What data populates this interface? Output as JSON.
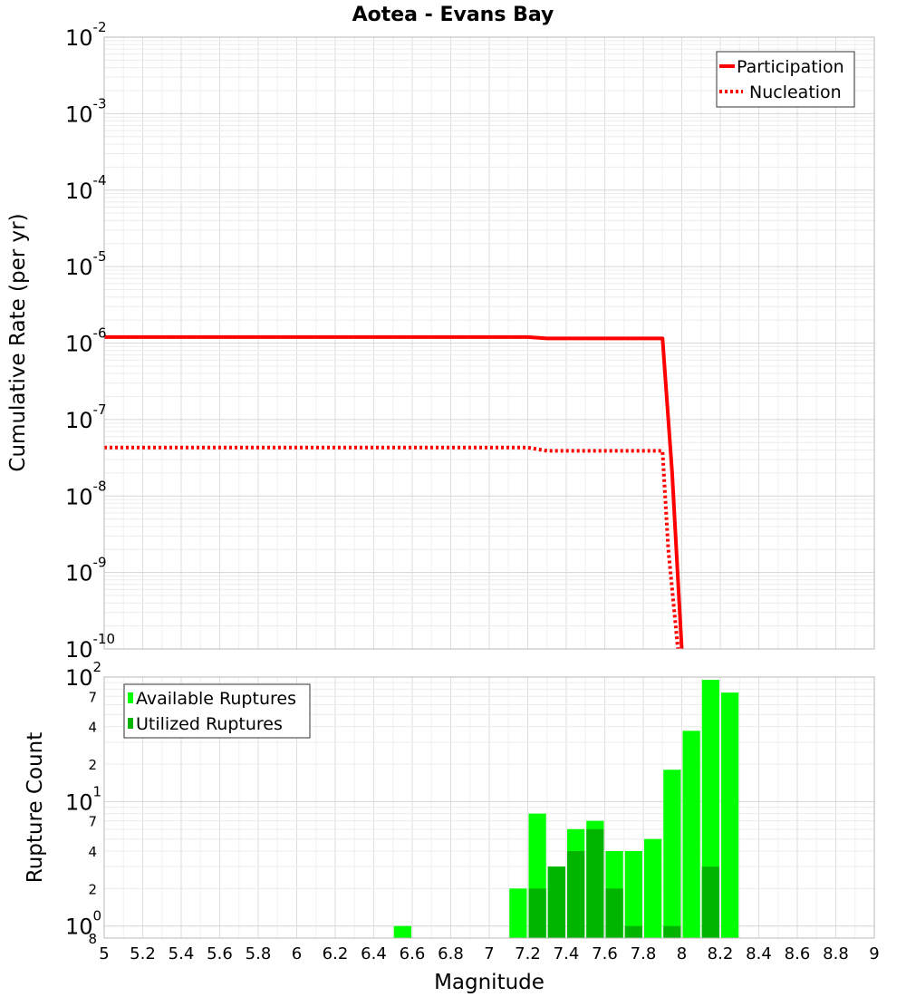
{
  "colors": {
    "participation": "#ff0000",
    "nucleation": "#ff0000",
    "available": "#00ff00",
    "utilized": "#00b400",
    "grid": "#e4e4e4"
  },
  "chart_data": [
    {
      "type": "line",
      "title": "Aotea - Evans Bay",
      "xlabel": "Magnitude",
      "ylabel": "Cumulative Rate (per yr)",
      "yscale": "log",
      "xlim": [
        5,
        9
      ],
      "ylim_exponents": [
        -10,
        -2
      ],
      "ytick_exponents": [
        -10,
        -9,
        -8,
        -7,
        -6,
        -5,
        -4,
        -3,
        -2
      ],
      "legend_position": "top-right",
      "series": [
        {
          "name": "Participation",
          "style": "solid",
          "x": [
            5.0,
            7.2,
            7.3,
            7.9,
            7.95,
            8.0
          ],
          "y": [
            1.2e-06,
            1.2e-06,
            1.15e-06,
            1.15e-06,
            2e-08,
            1e-10
          ]
        },
        {
          "name": "Nucleation",
          "style": "dotted",
          "x": [
            5.0,
            7.2,
            7.3,
            7.9,
            7.93,
            7.98
          ],
          "y": [
            4.3e-08,
            4.3e-08,
            3.9e-08,
            3.9e-08,
            2e-09,
            1e-10
          ]
        }
      ]
    },
    {
      "type": "bar",
      "xlabel": "Magnitude",
      "ylabel": "Rupture Count",
      "yscale": "log",
      "xlim": [
        5,
        9
      ],
      "ylim": [
        0.8,
        100
      ],
      "major_ticks": [
        {
          "base": "10",
          "exp": "0",
          "value": 1
        },
        {
          "base": "10",
          "exp": "1",
          "value": 10
        },
        {
          "base": "10",
          "exp": "2",
          "value": 100
        }
      ],
      "minor_ticks": [
        {
          "label": "8",
          "value": 0.8
        },
        {
          "label": "2",
          "value": 2
        },
        {
          "label": "4",
          "value": 4
        },
        {
          "label": "7",
          "value": 7
        },
        {
          "label": "2",
          "value": 20
        },
        {
          "label": "4",
          "value": 40
        },
        {
          "label": "7",
          "value": 70
        }
      ],
      "xticks": [
        "5",
        "5.2",
        "5.4",
        "5.6",
        "5.8",
        "6",
        "6.2",
        "6.4",
        "6.6",
        "6.8",
        "7",
        "7.2",
        "7.4",
        "7.6",
        "7.8",
        "8",
        "8.2",
        "8.4",
        "8.6",
        "8.8",
        "9"
      ],
      "legend_position": "top-left",
      "bin_width": 0.1,
      "series": [
        {
          "name": "Available Ruptures",
          "bins": [
            6.55,
            7.15,
            7.25,
            7.35,
            7.45,
            7.55,
            7.65,
            7.75,
            7.85,
            7.95,
            8.05,
            8.15,
            8.25
          ],
          "values": [
            1,
            2,
            8,
            3,
            6,
            7,
            4,
            4,
            5,
            18,
            37,
            95,
            75
          ]
        },
        {
          "name": "Utilized Ruptures",
          "bins": [
            7.25,
            7.35,
            7.45,
            7.55,
            7.65,
            7.75,
            7.95,
            8.15
          ],
          "values": [
            2,
            3,
            4,
            6,
            2,
            1,
            1,
            3
          ]
        }
      ]
    }
  ]
}
